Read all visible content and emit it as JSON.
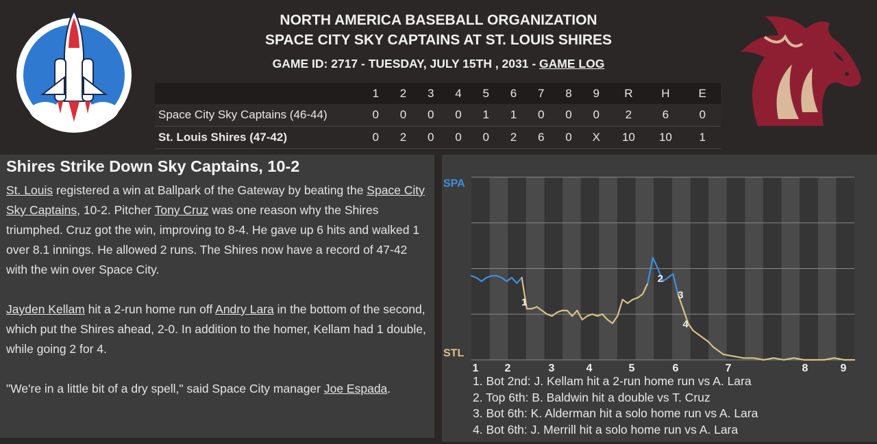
{
  "header": {
    "league": "NORTH AMERICA BASEBALL ORGANIZATION",
    "matchup": "SPACE CITY SKY CAPTAINS AT ST. LOUIS SHIRES",
    "game_info": "GAME ID: 2717 - TUESDAY, JULY 15TH , 2031 - ",
    "game_log_link": "GAME LOG"
  },
  "logos": {
    "away_icon": "space-shuttle-logo",
    "home_icon": "horse-head-logo",
    "away_color": "#2f7ad0",
    "home_color": "#8e1f33"
  },
  "boxscore": {
    "innings": [
      "1",
      "2",
      "3",
      "4",
      "5",
      "6",
      "7",
      "8",
      "9"
    ],
    "totals_headers": [
      "R",
      "H",
      "E"
    ],
    "away": {
      "team": "Space City Sky Captains (46-44)",
      "innings": [
        "0",
        "0",
        "0",
        "0",
        "1",
        "1",
        "0",
        "0",
        "0"
      ],
      "totals": [
        "2",
        "6",
        "0"
      ]
    },
    "home": {
      "team": "St. Louis Shires (47-42)",
      "innings": [
        "0",
        "2",
        "0",
        "0",
        "0",
        "2",
        "6",
        "0",
        "X"
      ],
      "totals": [
        "10",
        "10",
        "1"
      ]
    }
  },
  "story": {
    "headline": "Shires Strike Down Sky Captains, 10-2",
    "p1": {
      "a": "St. Louis",
      "b": " registered a win at Ballpark of the Gateway by beating the ",
      "c": "Space City Sky Captains",
      "d": ", 10-2. Pitcher ",
      "e": "Tony Cruz",
      "f": " was one reason why the Shires triumphed. Cruz got the win, improving to 8-4. He gave up 6 hits and walked 1 over 8.1 innings. He allowed 2 runs. The Shires now have a record of 47-42 with the win over Space City."
    },
    "p2": {
      "a": "Jayden Kellam",
      "b": " hit a 2-run home run off ",
      "c": "Andry Lara",
      "d": " in the bottom of the second, which put the Shires ahead, 2-0. In addition to the homer, Kellam had 1 double, while going 2 for 4."
    },
    "p3": {
      "a": "\"We're in a little bit of a dry spell,\" said Space City manager ",
      "b": "Joe Espada",
      "c": "."
    }
  },
  "chart_data": {
    "type": "line",
    "top_label": "SPA",
    "bottom_label": "STL",
    "x_ticks": [
      "1",
      "2",
      "3",
      "4",
      "5",
      "6",
      "7",
      "8",
      "9"
    ],
    "colors": {
      "away": "#3f8fdf",
      "home": "#d9c08a"
    },
    "y_meaning": "win probability of Space City (1 = SPA, 0 = STL)",
    "ylim": [
      0,
      1
    ],
    "series": [
      {
        "values": [
          [
            0.0,
            0.46
          ],
          [
            0.2,
            0.45
          ],
          [
            0.4,
            0.43
          ],
          [
            0.6,
            0.45
          ],
          [
            0.8,
            0.46
          ],
          [
            1.0,
            0.46
          ],
          [
            1.2,
            0.45
          ],
          [
            1.4,
            0.43
          ],
          [
            1.6,
            0.45
          ],
          [
            1.8,
            0.42
          ],
          [
            2.0,
            0.45
          ],
          [
            2.2,
            0.28
          ],
          [
            2.4,
            0.28
          ],
          [
            2.6,
            0.29
          ],
          [
            2.8,
            0.27
          ],
          [
            3.0,
            0.25
          ],
          [
            3.2,
            0.24
          ],
          [
            3.4,
            0.26
          ],
          [
            3.6,
            0.27
          ],
          [
            3.8,
            0.27
          ],
          [
            4.0,
            0.24
          ],
          [
            4.2,
            0.27
          ],
          [
            4.4,
            0.22
          ],
          [
            4.6,
            0.24
          ],
          [
            4.8,
            0.25
          ],
          [
            5.0,
            0.24
          ],
          [
            5.2,
            0.25
          ],
          [
            5.4,
            0.22
          ],
          [
            5.6,
            0.2
          ],
          [
            5.8,
            0.24
          ],
          [
            6.0,
            0.33
          ],
          [
            6.2,
            0.31
          ],
          [
            6.4,
            0.33
          ],
          [
            6.6,
            0.34
          ],
          [
            6.8,
            0.36
          ],
          [
            7.0,
            0.42
          ],
          [
            7.2,
            0.56
          ],
          [
            7.4,
            0.5
          ],
          [
            7.6,
            0.43
          ],
          [
            7.8,
            0.45
          ],
          [
            8.0,
            0.47
          ],
          [
            8.2,
            0.36
          ],
          [
            8.4,
            0.28
          ],
          [
            8.6,
            0.2
          ],
          [
            8.8,
            0.16
          ],
          [
            9.0,
            0.14
          ],
          [
            9.2,
            0.12
          ],
          [
            9.4,
            0.1
          ],
          [
            9.6,
            0.07
          ],
          [
            9.8,
            0.05
          ],
          [
            10.0,
            0.03
          ],
          [
            10.4,
            0.02
          ],
          [
            10.8,
            0.01
          ],
          [
            11.2,
            0.01
          ],
          [
            11.6,
            0.0
          ],
          [
            12.0,
            0.01
          ],
          [
            12.4,
            0.0
          ],
          [
            12.8,
            0.01
          ],
          [
            13.2,
            0.0
          ],
          [
            13.6,
            0.0
          ],
          [
            14.0,
            0.0
          ],
          [
            14.4,
            0.01
          ],
          [
            14.8,
            0.0
          ],
          [
            15.2,
            0.0
          ]
        ]
      }
    ],
    "markers": [
      {
        "label": "1",
        "x": 2.1,
        "y": 0.32
      },
      {
        "label": "2",
        "x": 7.5,
        "y": 0.45
      },
      {
        "label": "3",
        "x": 8.3,
        "y": 0.36
      },
      {
        "label": "4",
        "x": 8.5,
        "y": 0.2
      }
    ],
    "annotations": [
      "1. Bot 2nd: J. Kellam hit a 2-run home run vs A. Lara",
      "2. Top 6th: B. Baldwin hit a double vs T. Cruz",
      "3. Bot 6th: K. Alderman hit a solo home run vs A. Lara",
      "4. Bot 6th: J. Merrill hit a solo home run vs A. Lara"
    ]
  }
}
